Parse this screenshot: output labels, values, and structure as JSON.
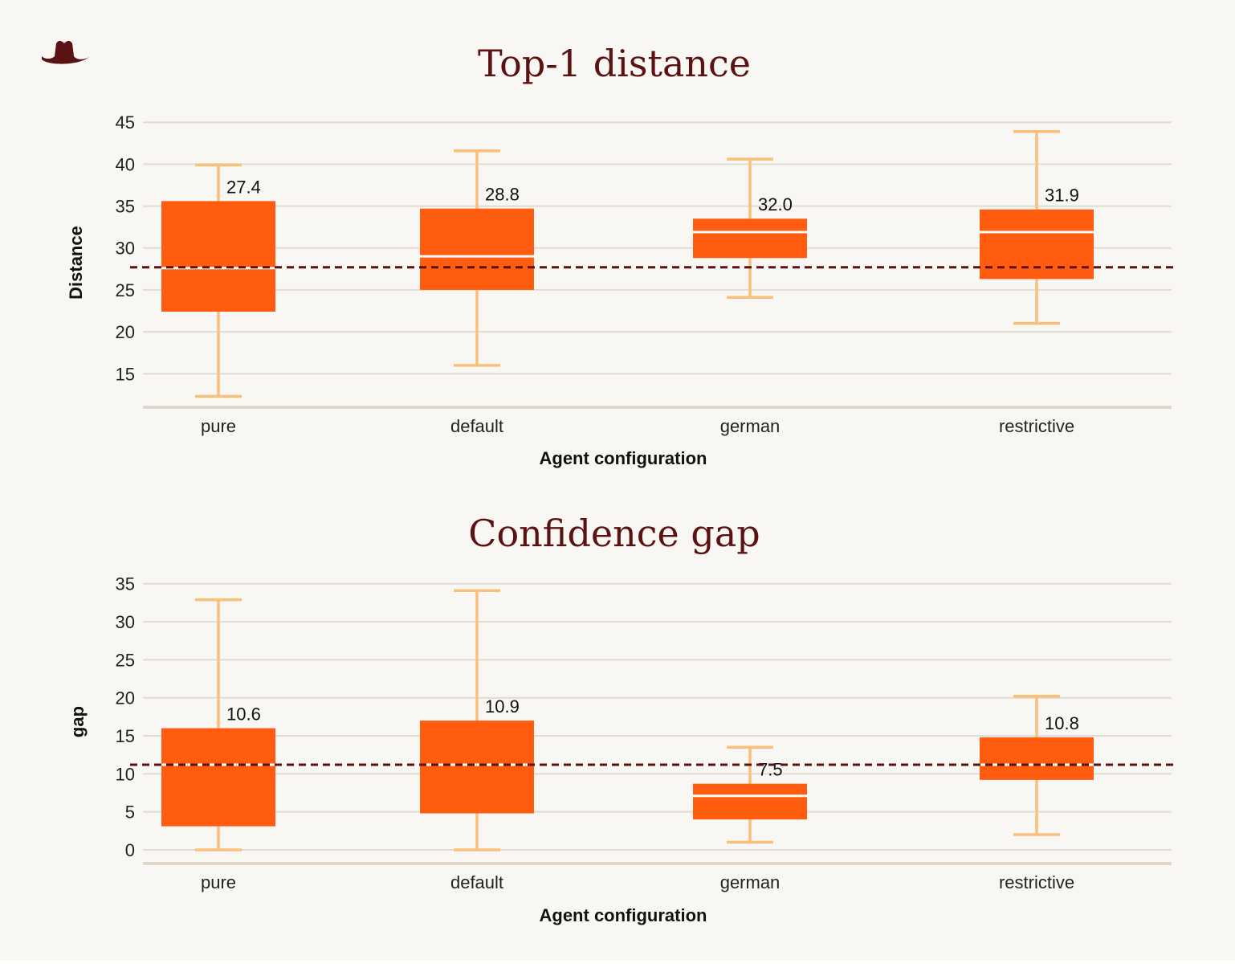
{
  "logo": {
    "icon": "cowboy-hat-icon",
    "color": "#5a1212"
  },
  "colors": {
    "box": "#ff5c0f",
    "whisker": "#fbbf7a",
    "median": "#ffffff",
    "reference_line": "#5a1212",
    "grid": "#e2dbd1",
    "title": "#5a1212"
  },
  "chart_data": [
    {
      "type": "box",
      "title": "Top-1 distance",
      "xlabel": "Agent configuration",
      "ylabel": "Distance",
      "ylim": [
        11,
        45.5
      ],
      "yticks": [
        15,
        20,
        25,
        30,
        35,
        40,
        45
      ],
      "categories": [
        "pure",
        "default",
        "german",
        "restrictive"
      ],
      "boxes": [
        {
          "category": "pure",
          "whislo": 12.3,
          "q1": 22.4,
          "median": 27.6,
          "q3": 35.6,
          "whishi": 39.9,
          "label": "27.4"
        },
        {
          "category": "default",
          "whislo": 16.0,
          "q1": 25.0,
          "median": 29.0,
          "q3": 34.7,
          "whishi": 41.6,
          "label": "28.8"
        },
        {
          "category": "german",
          "whislo": 24.1,
          "q1": 28.8,
          "median": 31.9,
          "q3": 33.5,
          "whishi": 40.6,
          "label": "32.0"
        },
        {
          "category": "restrictive",
          "whislo": 21.0,
          "q1": 26.3,
          "median": 31.9,
          "q3": 34.6,
          "whishi": 43.9,
          "label": "31.9"
        }
      ],
      "reference_line": 27.7,
      "grid": true
    },
    {
      "type": "box",
      "title": "Confidence gap",
      "xlabel": "Agent configuration",
      "ylabel": "gap",
      "ylim": [
        -1.8,
        35.5
      ],
      "yticks": [
        0,
        5,
        10,
        15,
        20,
        25,
        30,
        35
      ],
      "categories": [
        "pure",
        "default",
        "german",
        "restrictive"
      ],
      "boxes": [
        {
          "category": "pure",
          "whislo": 0.0,
          "q1": 3.1,
          "median": 11.2,
          "q3": 16.0,
          "whishi": 32.9,
          "label": "10.6"
        },
        {
          "category": "default",
          "whislo": 0.0,
          "q1": 4.8,
          "median": 11.2,
          "q3": 17.0,
          "whishi": 34.1,
          "label": "10.9"
        },
        {
          "category": "german",
          "whislo": 1.0,
          "q1": 4.0,
          "median": 7.1,
          "q3": 8.7,
          "whishi": 13.5,
          "label": "7.5"
        },
        {
          "category": "restrictive",
          "whislo": 2.0,
          "q1": 9.2,
          "median": 11.2,
          "q3": 14.8,
          "whishi": 20.2,
          "label": "10.8"
        }
      ],
      "reference_line": 11.2,
      "grid": true
    }
  ]
}
